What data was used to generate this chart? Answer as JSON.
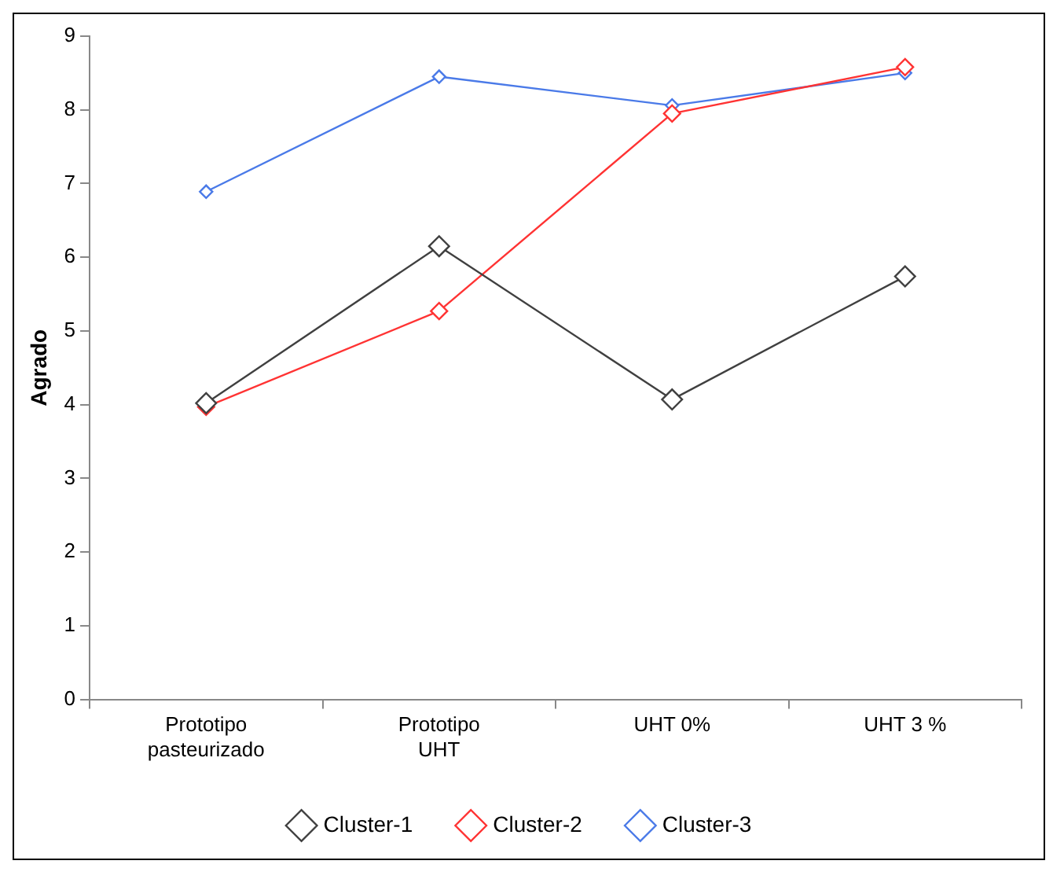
{
  "chart_data": {
    "type": "line",
    "ylabel": "Agrado",
    "categories": [
      "Prototipo pasteurizado",
      "Prototipo UHT",
      "UHT 0%",
      "UHT 3 %"
    ],
    "series": [
      {
        "name": "Cluster-1",
        "color": "#404040",
        "values": [
          4.02,
          6.15,
          4.07,
          5.74
        ]
      },
      {
        "name": "Cluster-2",
        "color": "#ff3333",
        "values": [
          3.97,
          5.27,
          7.95,
          8.58
        ]
      },
      {
        "name": "Cluster-3",
        "color": "#4a7ae8",
        "values": [
          6.89,
          8.45,
          8.06,
          8.5
        ]
      }
    ],
    "ylim": [
      0,
      9
    ],
    "yticks": [
      0,
      1,
      2,
      3,
      4,
      5,
      6,
      7,
      8,
      9
    ],
    "grid": false,
    "legend": "bottom",
    "marker": "diamond",
    "line_style": "solid"
  }
}
